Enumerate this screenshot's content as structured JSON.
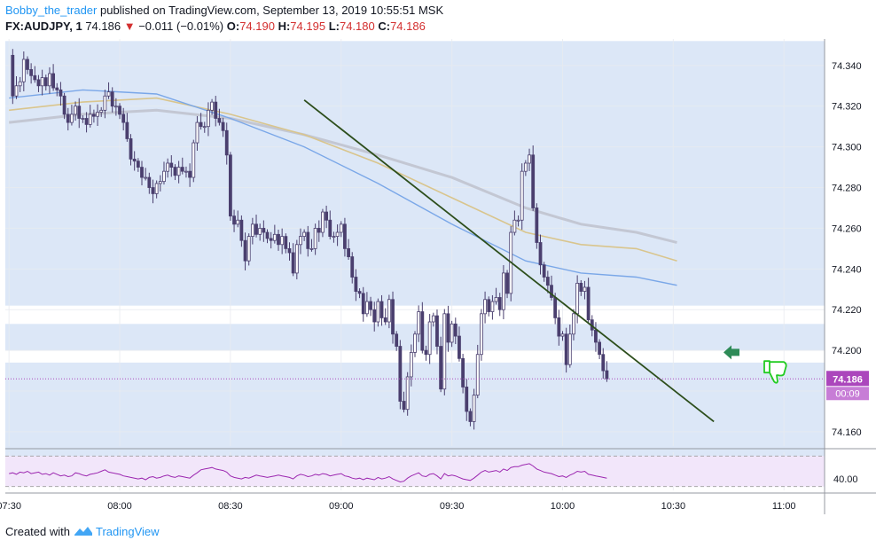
{
  "header": {
    "author": "Bobby_the_trader",
    "published_text": "published on TradingView.com, September 13, 2019 10:55:51 MSK",
    "symbol": "FX:AUDJPY, 1",
    "last_price": "74.186",
    "change": "−0.011 (−0.01%)",
    "o_label": "O:",
    "o_value": "74.190",
    "h_label": "H:",
    "h_value": "74.195",
    "l_label": "L:",
    "l_value": "74.180",
    "c_label": "C:",
    "c_value": "74.186"
  },
  "footer": {
    "created_with": "Created with",
    "brand": "TradingView"
  },
  "price_tag": {
    "price": "74.186",
    "countdown": "00:09"
  },
  "colors": {
    "up": "#ffffff",
    "down": "#4a3f6e",
    "zone": "#dce7f7",
    "ma_fast": "#7aa7e8",
    "ma_mid": "#d9c58d",
    "ma_slow": "#c3c7d3",
    "trendline": "#2d4e1c",
    "rsi": "#9c27b0",
    "rsi_band": "#f2e6fa",
    "arrow": "#2e8b57",
    "thumb": "#22cc22",
    "price_line": "#ab47bc"
  },
  "icons": [
    "left-arrow-icon",
    "thumbs-down-icon",
    "tradingview-logo-icon"
  ],
  "chart_data": {
    "type": "candlestick",
    "interval": "1 minute",
    "y_ticks": [
      "74.340",
      "74.320",
      "74.300",
      "74.280",
      "74.260",
      "74.240",
      "74.220",
      "74.200",
      "74.180",
      "74.160"
    ],
    "x_ticks": [
      "07:30",
      "08:00",
      "08:30",
      "09:00",
      "09:30",
      "10:00",
      "10:30",
      "11:00"
    ],
    "ylim": [
      74.153,
      74.353
    ],
    "xlim_minutes_from_0730": [
      -1,
      221
    ],
    "rsi_ticks": [
      "40.00"
    ],
    "rsi_ylim": [
      25,
      75
    ],
    "zones": [
      {
        "from": 74.222,
        "to": 74.352
      },
      {
        "from": 74.2,
        "to": 74.213
      },
      {
        "from": 74.147,
        "to": 74.194
      }
    ],
    "trendline": {
      "from": [
        "08:50",
        74.323
      ],
      "to": [
        "10:41",
        74.165
      ]
    },
    "current_price": 74.186,
    "closes": [
      74.345,
      74.325,
      74.33,
      74.332,
      74.343,
      74.338,
      74.335,
      74.333,
      74.33,
      74.334,
      74.33,
      74.336,
      74.329,
      74.328,
      74.325,
      74.316,
      74.312,
      74.316,
      74.32,
      74.314,
      74.314,
      74.311,
      74.316,
      74.315,
      74.317,
      74.318,
      74.325,
      74.327,
      74.32,
      74.32,
      74.316,
      74.312,
      74.304,
      74.294,
      74.293,
      74.29,
      74.285,
      74.285,
      74.28,
      74.277,
      74.282,
      74.283,
      74.288,
      74.292,
      74.29,
      74.286,
      74.29,
      74.288,
      74.288,
      74.285,
      74.302,
      74.312,
      74.31,
      74.31,
      74.318,
      74.322,
      74.314,
      74.312,
      74.308,
      74.296,
      74.266,
      74.262,
      74.264,
      74.254,
      74.244,
      74.256,
      74.262,
      74.257,
      74.26,
      74.258,
      74.255,
      74.254,
      74.257,
      74.252,
      74.256,
      74.25,
      74.248,
      74.238,
      74.252,
      74.256,
      74.258,
      74.25,
      74.25,
      74.26,
      74.258,
      74.268,
      74.264,
      74.256,
      74.256,
      74.258,
      74.262,
      74.25,
      74.246,
      74.236,
      74.229,
      74.228,
      74.218,
      74.224,
      74.22,
      74.214,
      74.224,
      74.216,
      74.214,
      74.225,
      74.208,
      74.202,
      74.175,
      74.171,
      74.187,
      74.199,
      74.208,
      74.219,
      74.2,
      74.198,
      74.214,
      74.217,
      74.202,
      74.181,
      74.218,
      74.204,
      74.213,
      74.207,
      74.196,
      74.182,
      74.17,
      74.165,
      74.178,
      74.198,
      74.218,
      74.225,
      74.219,
      74.224,
      74.226,
      74.22,
      74.238,
      74.228,
      74.258,
      74.264,
      74.264,
      74.288,
      74.292,
      74.296,
      74.27,
      74.253,
      74.242,
      74.236,
      74.232,
      74.226,
      74.216,
      74.207,
      74.208,
      74.193,
      74.208,
      74.218,
      74.233,
      74.229,
      74.231,
      74.215,
      74.21,
      74.204,
      74.198,
      74.19,
      74.186
    ],
    "rsi_values": [
      47,
      48,
      46,
      49,
      48,
      50,
      47,
      48,
      49,
      46,
      47,
      45,
      48,
      46,
      44,
      45,
      43,
      44,
      48,
      47,
      45,
      44,
      46,
      47,
      48,
      50,
      52,
      49,
      48,
      47,
      46,
      44,
      43,
      42,
      41,
      40,
      41,
      39,
      42,
      43,
      41,
      42,
      44,
      45,
      43,
      42,
      44,
      43,
      42,
      41,
      45,
      48,
      52,
      53,
      54,
      55,
      53,
      52,
      51,
      49,
      44,
      42,
      41,
      40,
      42,
      41,
      43,
      45,
      44,
      43,
      42,
      43,
      44,
      45,
      44,
      43,
      42,
      40,
      44,
      46,
      45,
      43,
      44,
      46,
      45,
      47,
      46,
      44,
      45,
      46,
      47,
      44,
      43,
      41,
      40,
      41,
      39,
      41,
      40,
      39,
      42,
      40,
      41,
      43,
      40,
      38,
      36,
      37,
      41,
      44,
      46,
      48,
      44,
      43,
      46,
      47,
      44,
      40,
      47,
      44,
      45,
      44,
      42,
      40,
      39,
      38,
      41,
      45,
      49,
      51,
      49,
      50,
      51,
      49,
      53,
      51,
      55,
      56,
      56,
      58,
      59,
      60,
      57,
      53,
      51,
      49,
      48,
      47,
      45,
      43,
      44,
      42,
      45,
      47,
      50,
      49,
      50,
      46,
      45,
      44,
      43,
      42,
      41
    ],
    "ma_fast": [
      [
        0,
        74.324
      ],
      [
        20,
        74.328
      ],
      [
        40,
        74.326
      ],
      [
        60,
        74.314
      ],
      [
        80,
        74.3
      ],
      [
        100,
        74.282
      ],
      [
        120,
        74.262
      ],
      [
        140,
        74.244
      ],
      [
        155,
        74.238
      ],
      [
        170,
        74.236
      ],
      [
        181,
        74.232
      ]
    ],
    "ma_mid": [
      [
        0,
        74.318
      ],
      [
        20,
        74.322
      ],
      [
        40,
        74.324
      ],
      [
        60,
        74.316
      ],
      [
        80,
        74.306
      ],
      [
        100,
        74.292
      ],
      [
        120,
        74.275
      ],
      [
        140,
        74.258
      ],
      [
        155,
        74.252
      ],
      [
        170,
        74.25
      ],
      [
        181,
        74.244
      ]
    ],
    "ma_slow": [
      [
        0,
        74.312
      ],
      [
        20,
        74.316
      ],
      [
        40,
        74.318
      ],
      [
        60,
        74.314
      ],
      [
        80,
        74.306
      ],
      [
        100,
        74.296
      ],
      [
        120,
        74.285
      ],
      [
        140,
        74.27
      ],
      [
        155,
        74.262
      ],
      [
        170,
        74.258
      ],
      [
        181,
        74.253
      ]
    ]
  }
}
